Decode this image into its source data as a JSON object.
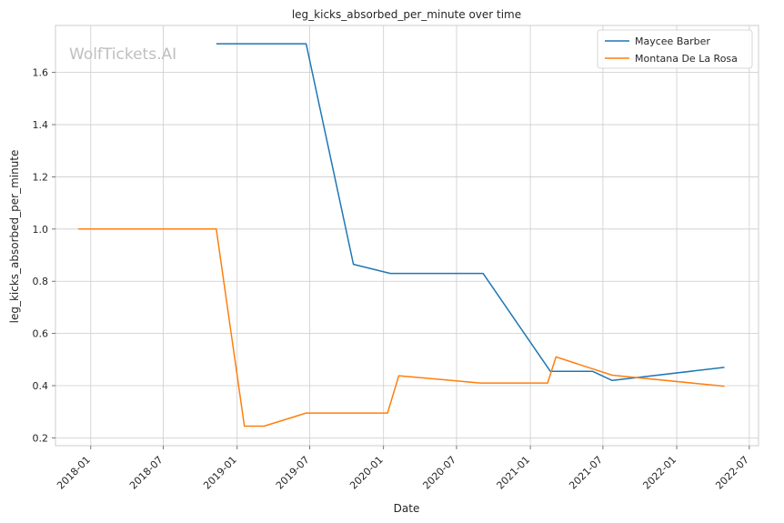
{
  "watermark": "WolfTickets.AI",
  "chart_data": {
    "type": "line",
    "title": "leg_kicks_absorbed_per_minute over time",
    "xlabel": "Date",
    "ylabel": "leg_kicks_absorbed_per_minute",
    "x_ticks": [
      "2018-01",
      "2018-07",
      "2019-01",
      "2019-07",
      "2020-01",
      "2020-07",
      "2021-01",
      "2021-07",
      "2022-01",
      "2022-07"
    ],
    "y_ticks": [
      "0.2",
      "0.4",
      "0.6",
      "0.8",
      "1.0",
      "1.2",
      "1.4",
      "1.6"
    ],
    "xlim": [
      "2017-10-05",
      "2022-07-24"
    ],
    "ylim": [
      0.17,
      1.78
    ],
    "grid": true,
    "legend_position": "top-right",
    "series": [
      {
        "name": "Maycee Barber",
        "color": "#1f77b4",
        "points": [
          {
            "x": "2018-11-10",
            "y": 1.71
          },
          {
            "x": "2019-06-22",
            "y": 1.71
          },
          {
            "x": "2019-10-18",
            "y": 0.865
          },
          {
            "x": "2020-01-18",
            "y": 0.83
          },
          {
            "x": "2020-09-05",
            "y": 0.83
          },
          {
            "x": "2021-02-20",
            "y": 0.455
          },
          {
            "x": "2021-06-05",
            "y": 0.455
          },
          {
            "x": "2021-07-24",
            "y": 0.42
          },
          {
            "x": "2022-04-30",
            "y": 0.47
          }
        ]
      },
      {
        "name": "Montana De La Rosa",
        "color": "#ff7f0e",
        "points": [
          {
            "x": "2017-12-01",
            "y": 1.0
          },
          {
            "x": "2018-11-10",
            "y": 1.0
          },
          {
            "x": "2019-01-19",
            "y": 0.245
          },
          {
            "x": "2019-03-09",
            "y": 0.245
          },
          {
            "x": "2019-06-22",
            "y": 0.295
          },
          {
            "x": "2020-01-11",
            "y": 0.295
          },
          {
            "x": "2020-02-08",
            "y": 0.438
          },
          {
            "x": "2020-08-29",
            "y": 0.41
          },
          {
            "x": "2021-02-13",
            "y": 0.41
          },
          {
            "x": "2021-03-06",
            "y": 0.51
          },
          {
            "x": "2021-07-24",
            "y": 0.44
          },
          {
            "x": "2022-04-30",
            "y": 0.398
          }
        ]
      }
    ]
  }
}
